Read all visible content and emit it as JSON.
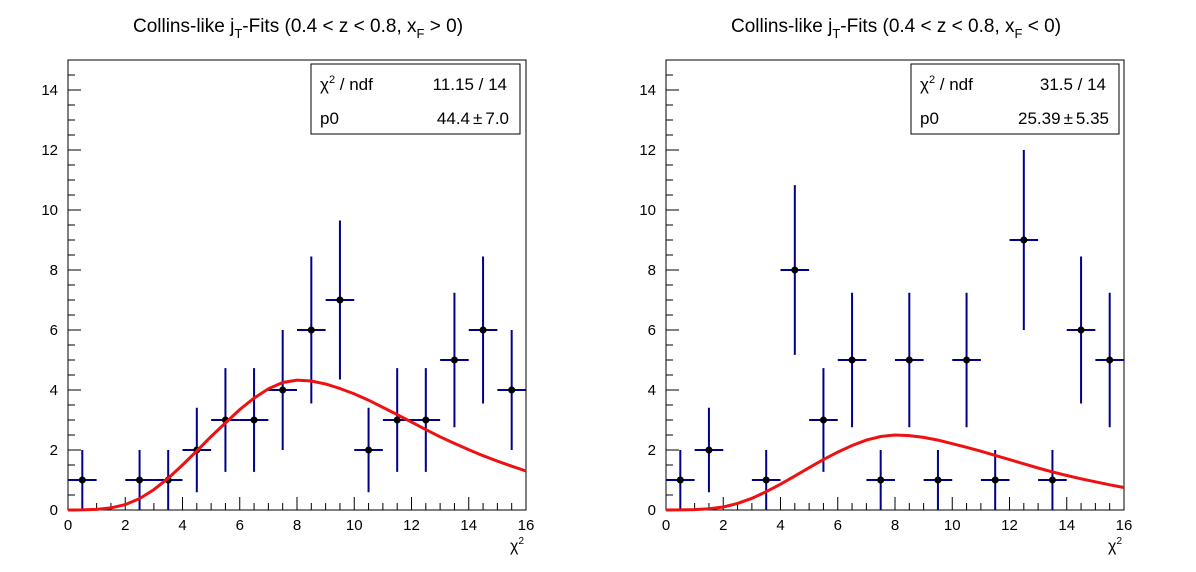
{
  "chart_data": [
    {
      "type": "scatter",
      "title_main": "Collins-like j",
      "title_sub1": "T",
      "title_mid": "-Fits (0.4 < z < 0.8, x",
      "title_sub2": "F",
      "title_end": " > 0)",
      "xlabel": "χ",
      "xlabel_sup": "2",
      "xlim": [
        0,
        16
      ],
      "ylim": [
        0,
        15
      ],
      "x_ticks": [
        "0",
        "2",
        "4",
        "6",
        "8",
        "10",
        "12",
        "14",
        "16"
      ],
      "y_ticks": [
        "0",
        "2",
        "4",
        "6",
        "8",
        "10",
        "12",
        "14"
      ],
      "stats": {
        "row1_label": "χ",
        "row1_label_sup": "2",
        "row1_label_rest": " / ndf",
        "row1_value": "11.15 / 14",
        "row2_label": "p0",
        "row2_value_a": "44.4",
        "row2_pm": "±",
        "row2_value_b": "7.0",
        "p0": 44.4
      },
      "points": [
        {
          "x": 0.5,
          "y": 1,
          "xerr": 0.5,
          "yerr_lo": 1,
          "yerr_hi": 1
        },
        {
          "x": 2.5,
          "y": 1,
          "xerr": 0.5,
          "yerr_lo": 1,
          "yerr_hi": 1
        },
        {
          "x": 3.5,
          "y": 1,
          "xerr": 0.5,
          "yerr_lo": 1,
          "yerr_hi": 1
        },
        {
          "x": 4.5,
          "y": 2,
          "xerr": 0.5,
          "yerr_lo": 1.41,
          "yerr_hi": 1.41
        },
        {
          "x": 5.5,
          "y": 3,
          "xerr": 0.5,
          "yerr_lo": 1.73,
          "yerr_hi": 1.73
        },
        {
          "x": 6.5,
          "y": 3,
          "xerr": 0.5,
          "yerr_lo": 1.73,
          "yerr_hi": 1.73
        },
        {
          "x": 7.5,
          "y": 4,
          "xerr": 0.5,
          "yerr_lo": 2,
          "yerr_hi": 2
        },
        {
          "x": 8.5,
          "y": 6,
          "xerr": 0.5,
          "yerr_lo": 2.45,
          "yerr_hi": 2.45
        },
        {
          "x": 9.5,
          "y": 7,
          "xerr": 0.5,
          "yerr_lo": 2.65,
          "yerr_hi": 2.65
        },
        {
          "x": 10.5,
          "y": 2,
          "xerr": 0.5,
          "yerr_lo": 1.41,
          "yerr_hi": 1.41
        },
        {
          "x": 11.5,
          "y": 3,
          "xerr": 0.5,
          "yerr_lo": 1.73,
          "yerr_hi": 1.73
        },
        {
          "x": 12.5,
          "y": 3,
          "xerr": 0.5,
          "yerr_lo": 1.73,
          "yerr_hi": 1.73
        },
        {
          "x": 13.5,
          "y": 5,
          "xerr": 0.5,
          "yerr_lo": 2.24,
          "yerr_hi": 2.24
        },
        {
          "x": 14.5,
          "y": 6,
          "xerr": 0.5,
          "yerr_lo": 2.45,
          "yerr_hi": 2.45
        },
        {
          "x": 15.5,
          "y": 4,
          "xerr": 0.5,
          "yerr_lo": 2,
          "yerr_hi": 2
        }
      ],
      "fit_curve": {
        "x": [
          0,
          0.5,
          1,
          1.5,
          2,
          2.5,
          3,
          3.5,
          4,
          4.5,
          5,
          5.5,
          6,
          6.5,
          7,
          7.5,
          8,
          8.5,
          9,
          9.5,
          10,
          10.5,
          11,
          11.5,
          12,
          12.5,
          13,
          13.5,
          14,
          14.5,
          15,
          15.5,
          16
        ],
        "y": [
          0,
          0.003,
          0.02,
          0.07,
          0.18,
          0.38,
          0.68,
          1.06,
          1.5,
          1.97,
          2.45,
          2.9,
          3.35,
          3.73,
          4.04,
          4.25,
          4.33,
          4.3,
          4.2,
          4.05,
          3.87,
          3.66,
          3.42,
          3.18,
          2.93,
          2.68,
          2.44,
          2.22,
          2.01,
          1.81,
          1.63,
          1.46,
          1.3
        ]
      }
    },
    {
      "type": "scatter",
      "title_main": "Collins-like j",
      "title_sub1": "T",
      "title_mid": "-Fits (0.4 < z < 0.8, x",
      "title_sub2": "F",
      "title_end": " < 0)",
      "xlabel": "χ",
      "xlabel_sup": "2",
      "xlim": [
        0,
        16
      ],
      "ylim": [
        0,
        15
      ],
      "x_ticks": [
        "0",
        "2",
        "4",
        "6",
        "8",
        "10",
        "12",
        "14",
        "16"
      ],
      "y_ticks": [
        "0",
        "2",
        "4",
        "6",
        "8",
        "10",
        "12",
        "14"
      ],
      "stats": {
        "row1_label": "χ",
        "row1_label_sup": "2",
        "row1_label_rest": " / ndf",
        "row1_value": "31.5 / 14",
        "row2_label": "p0",
        "row2_value_a": "25.39",
        "row2_pm": "±",
        "row2_value_b": "5.35",
        "p0": 25.39
      },
      "points": [
        {
          "x": 0.5,
          "y": 1,
          "xerr": 0.5,
          "yerr_lo": 1,
          "yerr_hi": 1
        },
        {
          "x": 1.5,
          "y": 2,
          "xerr": 0.5,
          "yerr_lo": 1.41,
          "yerr_hi": 1.41
        },
        {
          "x": 3.5,
          "y": 1,
          "xerr": 0.5,
          "yerr_lo": 1,
          "yerr_hi": 1
        },
        {
          "x": 4.5,
          "y": 8,
          "xerr": 0.5,
          "yerr_lo": 2.83,
          "yerr_hi": 2.83
        },
        {
          "x": 5.5,
          "y": 3,
          "xerr": 0.5,
          "yerr_lo": 1.73,
          "yerr_hi": 1.73
        },
        {
          "x": 6.5,
          "y": 5,
          "xerr": 0.5,
          "yerr_lo": 2.24,
          "yerr_hi": 2.24
        },
        {
          "x": 7.5,
          "y": 1,
          "xerr": 0.5,
          "yerr_lo": 1,
          "yerr_hi": 1
        },
        {
          "x": 8.5,
          "y": 5,
          "xerr": 0.5,
          "yerr_lo": 2.24,
          "yerr_hi": 2.24
        },
        {
          "x": 9.5,
          "y": 1,
          "xerr": 0.5,
          "yerr_lo": 1,
          "yerr_hi": 1
        },
        {
          "x": 10.5,
          "y": 5,
          "xerr": 0.5,
          "yerr_lo": 2.24,
          "yerr_hi": 2.24
        },
        {
          "x": 11.5,
          "y": 1,
          "xerr": 0.5,
          "yerr_lo": 1,
          "yerr_hi": 1
        },
        {
          "x": 12.5,
          "y": 9,
          "xerr": 0.5,
          "yerr_lo": 3,
          "yerr_hi": 3
        },
        {
          "x": 13.5,
          "y": 1,
          "xerr": 0.5,
          "yerr_lo": 1,
          "yerr_hi": 1
        },
        {
          "x": 14.5,
          "y": 6,
          "xerr": 0.5,
          "yerr_lo": 2.45,
          "yerr_hi": 2.45
        },
        {
          "x": 15.5,
          "y": 5,
          "xerr": 0.5,
          "yerr_lo": 2.24,
          "yerr_hi": 2.24
        }
      ],
      "fit_curve": {
        "x": [
          0,
          0.5,
          1,
          1.5,
          2,
          2.5,
          3,
          3.5,
          4,
          4.5,
          5,
          5.5,
          6,
          6.5,
          7,
          7.5,
          8,
          8.5,
          9,
          9.5,
          10,
          10.5,
          11,
          11.5,
          12,
          12.5,
          13,
          13.5,
          14,
          14.5,
          15,
          15.5,
          16
        ],
        "y": [
          0,
          0.002,
          0.012,
          0.04,
          0.1,
          0.22,
          0.39,
          0.61,
          0.86,
          1.13,
          1.41,
          1.68,
          1.93,
          2.15,
          2.33,
          2.45,
          2.5,
          2.48,
          2.42,
          2.33,
          2.21,
          2.09,
          1.96,
          1.82,
          1.68,
          1.54,
          1.4,
          1.27,
          1.15,
          1.04,
          0.94,
          0.84,
          0.75
        ]
      }
    }
  ]
}
